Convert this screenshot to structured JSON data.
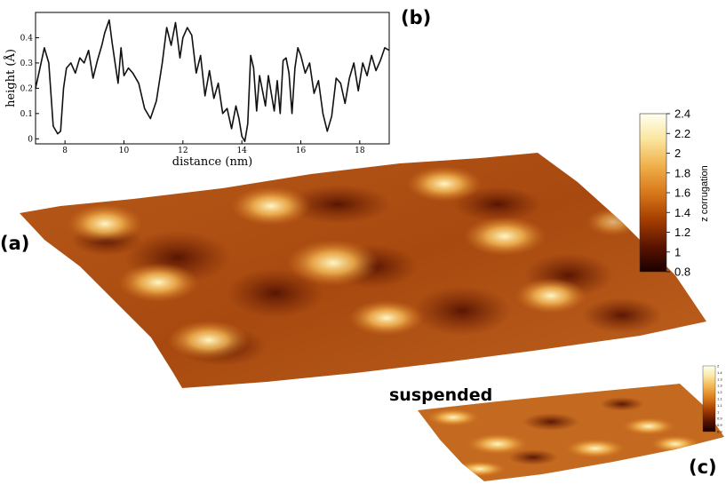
{
  "panels": {
    "a": "(a)",
    "b": "(b)",
    "c": "(c)"
  },
  "suspended_label": "suspended",
  "colorbar": {
    "title": "z corrugation",
    "ticks": [
      "0.8",
      "1",
      "1.2",
      "1.4",
      "1.6",
      "1.8",
      "2",
      "2.2",
      "2.4"
    ],
    "range": [
      0.8,
      2.4
    ],
    "colors": [
      "#1a0000",
      "#5a1400",
      "#a43e00",
      "#d8781a",
      "#f0b04a",
      "#fae6a0",
      "#fffff0"
    ]
  },
  "colorbar_small": {
    "ticks": [
      "0.9",
      "0.9",
      "0.9",
      "1",
      "1.1",
      "1.1",
      "1.2",
      "1.3",
      "1.3",
      "1.4",
      "2"
    ]
  },
  "chart_data": {
    "type": "line",
    "xlabel": "distance (nm)",
    "ylabel": "height (Å)",
    "xlim": [
      7,
      19
    ],
    "ylim": [
      -0.02,
      0.5
    ],
    "xticks": [
      "8",
      "10",
      "12",
      "14",
      "16",
      "18"
    ],
    "yticks": [
      "0",
      "0.1",
      "0.2",
      "0.3",
      "0.4"
    ],
    "series": [
      {
        "x": [
          7.0,
          7.15,
          7.3,
          7.45,
          7.6,
          7.75,
          7.85,
          7.95,
          8.05,
          8.2,
          8.35,
          8.5,
          8.65,
          8.8,
          8.95,
          9.1,
          9.25,
          9.35,
          9.5,
          9.6,
          9.7,
          9.8,
          9.9,
          10.0,
          10.15,
          10.3,
          10.5,
          10.7,
          10.9,
          11.1,
          11.3,
          11.45,
          11.6,
          11.75,
          11.9,
          12.0,
          12.15,
          12.3,
          12.45,
          12.6,
          12.75,
          12.9,
          13.05,
          13.2,
          13.35,
          13.5,
          13.65,
          13.8,
          13.9,
          14.0,
          14.1,
          14.2,
          14.3,
          14.4,
          14.5,
          14.6,
          14.7,
          14.8,
          14.9,
          15.0,
          15.1,
          15.2,
          15.3,
          15.4,
          15.5,
          15.6,
          15.7,
          15.8,
          15.9,
          16.0,
          16.15,
          16.3,
          16.45,
          16.6,
          16.75,
          16.9,
          17.05,
          17.2,
          17.35,
          17.5,
          17.65,
          17.8,
          17.95,
          18.1,
          18.25,
          18.4,
          18.55,
          18.7,
          18.85,
          19.0
        ],
        "y": [
          0.2,
          0.28,
          0.36,
          0.3,
          0.05,
          0.02,
          0.03,
          0.2,
          0.28,
          0.3,
          0.26,
          0.32,
          0.3,
          0.35,
          0.24,
          0.31,
          0.37,
          0.42,
          0.47,
          0.38,
          0.3,
          0.22,
          0.36,
          0.25,
          0.28,
          0.26,
          0.22,
          0.12,
          0.08,
          0.15,
          0.3,
          0.44,
          0.37,
          0.46,
          0.32,
          0.4,
          0.44,
          0.41,
          0.26,
          0.33,
          0.17,
          0.27,
          0.16,
          0.22,
          0.1,
          0.12,
          0.04,
          0.13,
          0.08,
          0.01,
          -0.01,
          0.06,
          0.33,
          0.28,
          0.11,
          0.25,
          0.19,
          0.13,
          0.25,
          0.18,
          0.11,
          0.23,
          0.1,
          0.31,
          0.32,
          0.26,
          0.1,
          0.28,
          0.36,
          0.33,
          0.26,
          0.3,
          0.18,
          0.23,
          0.1,
          0.03,
          0.09,
          0.24,
          0.22,
          0.14,
          0.24,
          0.3,
          0.19,
          0.3,
          0.25,
          0.33,
          0.27,
          0.31,
          0.36,
          0.35
        ]
      }
    ]
  }
}
